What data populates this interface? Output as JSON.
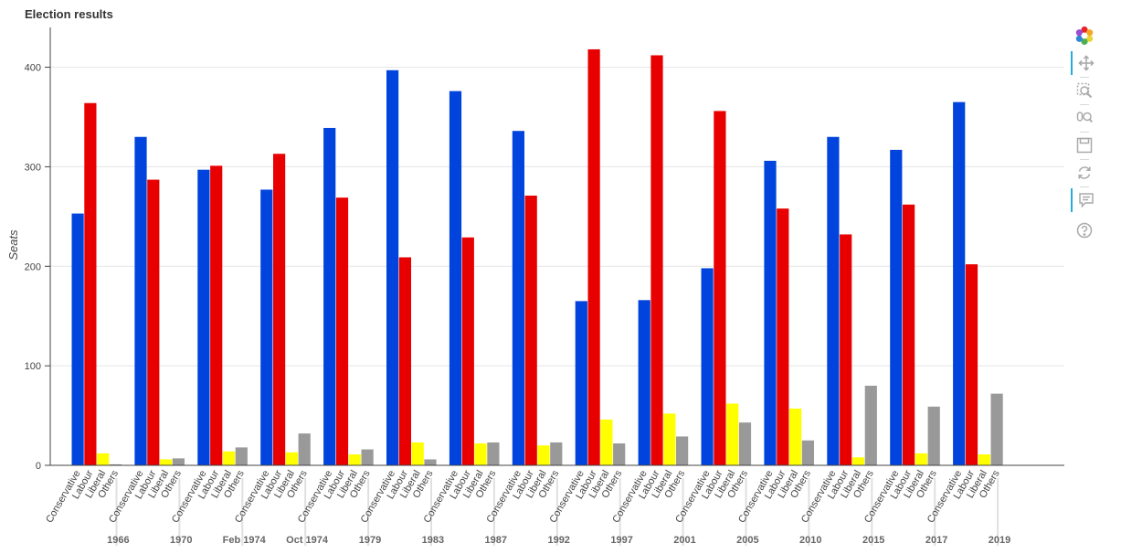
{
  "title": "Election results",
  "chart_data": {
    "type": "bar",
    "title": "Election results",
    "xlabel": "",
    "ylabel": "Seats",
    "ylim": [
      0,
      440
    ],
    "yticks": [
      0,
      100,
      200,
      300,
      400
    ],
    "grid": true,
    "legend": "none",
    "categories": [
      "1966",
      "1970",
      "Feb 1974",
      "Oct 1974",
      "1979",
      "1983",
      "1987",
      "1992",
      "1997",
      "2001",
      "2005",
      "2010",
      "2015",
      "2017",
      "2019"
    ],
    "series": [
      {
        "name": "Conservative",
        "color": "#0044dd",
        "values": [
          253,
          330,
          297,
          277,
          339,
          397,
          376,
          336,
          165,
          166,
          198,
          306,
          330,
          317,
          365
        ]
      },
      {
        "name": "Labour",
        "color": "#e80000",
        "values": [
          364,
          287,
          301,
          313,
          269,
          209,
          229,
          271,
          418,
          412,
          356,
          258,
          232,
          262,
          202
        ]
      },
      {
        "name": "Liberal",
        "color": "#ffff00",
        "values": [
          12,
          6,
          14,
          13,
          11,
          23,
          22,
          20,
          46,
          52,
          62,
          57,
          8,
          12,
          11
        ]
      },
      {
        "name": "Others",
        "color": "#999999",
        "values": [
          1,
          7,
          18,
          32,
          16,
          6,
          23,
          23,
          22,
          29,
          43,
          25,
          80,
          59,
          72
        ]
      }
    ]
  },
  "toolbar": {
    "tools": [
      {
        "name": "bokeh-logo-icon",
        "active": false
      },
      {
        "name": "pan-icon",
        "active": true
      },
      {
        "name": "box-zoom-icon",
        "active": false
      },
      {
        "name": "wheel-zoom-icon",
        "active": false
      },
      {
        "name": "save-icon",
        "active": false
      },
      {
        "name": "reset-icon",
        "active": false
      },
      {
        "name": "hover-icon",
        "active": true
      },
      {
        "name": "help-icon",
        "active": false
      }
    ]
  }
}
